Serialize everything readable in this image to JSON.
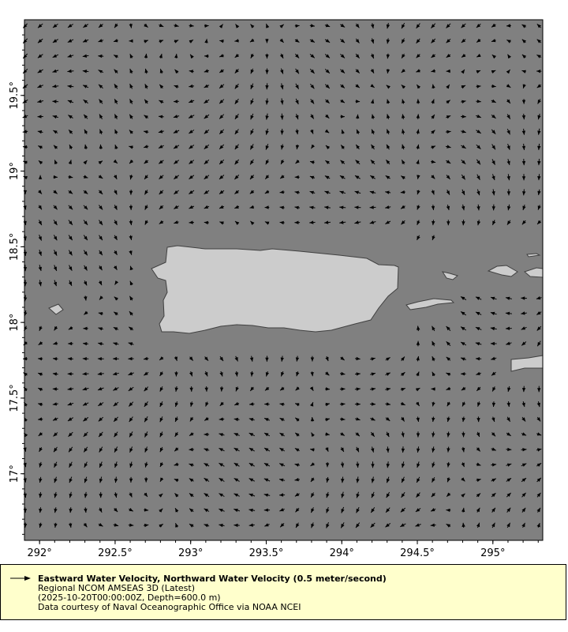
{
  "map": {
    "lon_range": [
      291.9,
      295.33
    ],
    "lat_range": [
      16.56,
      20.0
    ],
    "ocean_color": "#808080",
    "land_color": "#cccccc",
    "coast_color": "#404040",
    "arrow_color": "#000000",
    "x_ticks": [
      {
        "value": 292,
        "label": "292°"
      },
      {
        "value": 292.5,
        "label": "292.5°"
      },
      {
        "value": 293,
        "label": "293°"
      },
      {
        "value": 293.5,
        "label": "293.5°"
      },
      {
        "value": 294,
        "label": "294°"
      },
      {
        "value": 294.5,
        "label": "294.5°"
      },
      {
        "value": 295,
        "label": "295°"
      }
    ],
    "y_ticks": [
      {
        "value": 19.5,
        "label": "19.5°"
      },
      {
        "value": 19,
        "label": "19°"
      },
      {
        "value": 18.5,
        "label": "18.5°"
      },
      {
        "value": 18,
        "label": "18°"
      },
      {
        "value": 17.5,
        "label": "17.5°"
      },
      {
        "value": 17,
        "label": "17°"
      }
    ]
  },
  "legend": {
    "title": "Eastward Water Velocity, Northward Water Velocity (0.5 meter/second)",
    "line1": "Regional NCOM AMSEAS 3D (Latest)",
    "line2": "(2025-10-20T00:00:00Z, Depth=600.0 m)",
    "line3": "Data courtesy of Naval Oceanographic Office via NOAA NCEI"
  }
}
